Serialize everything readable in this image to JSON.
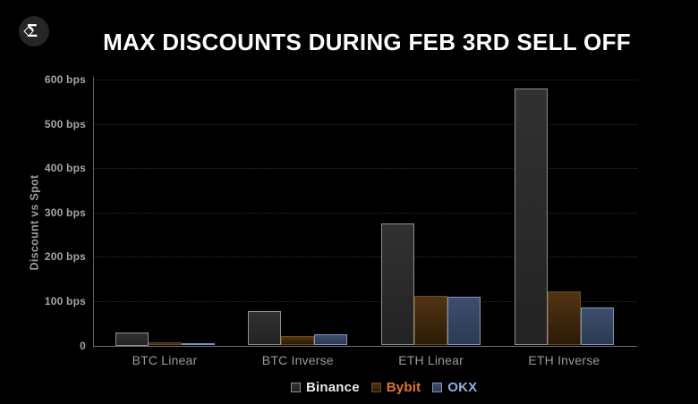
{
  "logo": {
    "glyph": "Σ",
    "icon": "sigma-diamond-logo"
  },
  "title": "MAX DISCOUNTS DURING FEB 3RD SELL OFF",
  "chart_data": {
    "type": "bar",
    "title": "MAX DISCOUNTS DURING FEB 3RD SELL OFF",
    "xlabel": "",
    "ylabel": "Discount vs Spot",
    "ylim": [
      0,
      600
    ],
    "grid": "horizontal-dotted",
    "legend_position": "bottom-center",
    "categories": [
      "BTC Linear",
      "BTC Inverse",
      "ETH Linear",
      "ETH Inverse"
    ],
    "y_ticks": [
      {
        "value": 600,
        "label": "600 bps"
      },
      {
        "value": 500,
        "label": "500 bps"
      },
      {
        "value": 400,
        "label": "400 bps"
      },
      {
        "value": 300,
        "label": "300 bps"
      },
      {
        "value": 200,
        "label": "200 bps"
      },
      {
        "value": 100,
        "label": "100 bps"
      },
      {
        "value": 0,
        "label": "0"
      }
    ],
    "series": [
      {
        "name": "Binance",
        "values": [
          30,
          78,
          275,
          580
        ],
        "fill_top": "#313131",
        "fill_bottom": "#232323",
        "border_color": "#8f8f8f",
        "label_color": "#e9e9e9"
      },
      {
        "name": "Bybit",
        "values": [
          8,
          22,
          111,
          123
        ],
        "fill_top": "#523413",
        "fill_bottom": "#2b1b06",
        "border_color": "#6e4b20",
        "label_color": "#e4762b"
      },
      {
        "name": "OKX",
        "values": [
          5,
          26,
          110,
          85
        ],
        "fill_top": "#3e4d6d",
        "fill_bottom": "#2c3a52",
        "border_color": "#7b95c4",
        "label_color": "#8fb0e0"
      }
    ]
  },
  "colors": {
    "background": "#000000",
    "title": "#ffffff",
    "axis": "#5f5f5f",
    "grid": "#2e2e2e",
    "tick_label": "#a6a6a6",
    "category_label": "#9a9a9a",
    "logo_circle": "#262626"
  }
}
